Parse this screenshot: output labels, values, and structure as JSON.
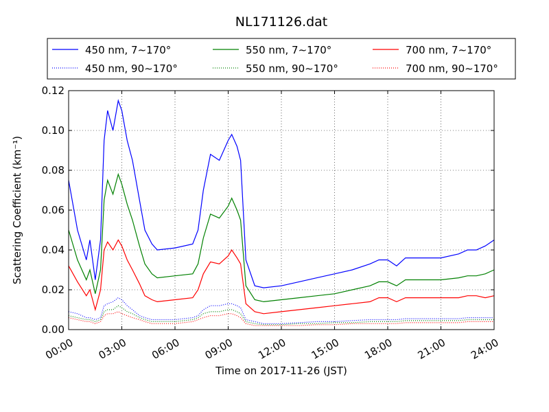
{
  "chart_data": {
    "type": "line",
    "title": "NL171126.dat",
    "xlabel": "Time on 2017-11-26 (JST)",
    "ylabel": "Scattering Coefficient (km⁻¹)",
    "xlim": [
      0,
      24
    ],
    "ylim": [
      0,
      0.12
    ],
    "x_ticks": [
      0,
      3,
      6,
      9,
      12,
      15,
      18,
      21,
      24
    ],
    "x_tick_labels": [
      "00:00",
      "03:00",
      "06:00",
      "09:00",
      "12:00",
      "15:00",
      "18:00",
      "21:00",
      "24:00"
    ],
    "y_ticks": [
      0,
      0.02,
      0.04,
      0.06,
      0.08,
      0.1,
      0.12
    ],
    "y_tick_labels": [
      "0.00",
      "0.02",
      "0.04",
      "0.06",
      "0.08",
      "0.10",
      "0.12"
    ],
    "grid": true,
    "legend_position": "top",
    "x": [
      0,
      0.5,
      1,
      1.2,
      1.5,
      1.8,
      2,
      2.2,
      2.5,
      2.8,
      3,
      3.3,
      3.6,
      4,
      4.3,
      4.7,
      5,
      6,
      7,
      7.3,
      7.6,
      8,
      8.5,
      9,
      9.2,
      9.5,
      9.7,
      10,
      10.5,
      11,
      12,
      13,
      14,
      15,
      16,
      17,
      17.5,
      18,
      18.5,
      19,
      20,
      21,
      22,
      22.5,
      23,
      23.5,
      24
    ],
    "series": [
      {
        "name": "450 nm, 7∼170°",
        "color": "#0000ff",
        "style": "solid",
        "values": [
          0.075,
          0.05,
          0.035,
          0.045,
          0.025,
          0.045,
          0.095,
          0.11,
          0.1,
          0.115,
          0.11,
          0.095,
          0.085,
          0.065,
          0.05,
          0.043,
          0.04,
          0.041,
          0.043,
          0.05,
          0.07,
          0.088,
          0.085,
          0.095,
          0.098,
          0.092,
          0.085,
          0.035,
          0.022,
          0.021,
          0.022,
          0.024,
          0.026,
          0.028,
          0.03,
          0.033,
          0.035,
          0.035,
          0.032,
          0.036,
          0.036,
          0.036,
          0.038,
          0.04,
          0.04,
          0.042,
          0.045
        ]
      },
      {
        "name": "450 nm, 90∼170°",
        "color": "#0000ff",
        "style": "dotted",
        "values": [
          0.009,
          0.008,
          0.006,
          0.006,
          0.005,
          0.006,
          0.012,
          0.013,
          0.014,
          0.016,
          0.015,
          0.012,
          0.01,
          0.007,
          0.006,
          0.005,
          0.005,
          0.005,
          0.006,
          0.007,
          0.01,
          0.012,
          0.012,
          0.013,
          0.013,
          0.012,
          0.011,
          0.005,
          0.004,
          0.003,
          0.003,
          0.0035,
          0.004,
          0.004,
          0.0045,
          0.005,
          0.005,
          0.005,
          0.005,
          0.0055,
          0.0055,
          0.0055,
          0.0055,
          0.006,
          0.006,
          0.006,
          0.006
        ]
      },
      {
        "name": "550 nm, 7∼170°",
        "color": "#008000",
        "style": "solid",
        "values": [
          0.05,
          0.035,
          0.025,
          0.03,
          0.018,
          0.03,
          0.065,
          0.075,
          0.068,
          0.078,
          0.073,
          0.063,
          0.055,
          0.042,
          0.033,
          0.028,
          0.026,
          0.027,
          0.028,
          0.033,
          0.046,
          0.058,
          0.056,
          0.062,
          0.066,
          0.06,
          0.055,
          0.022,
          0.015,
          0.014,
          0.015,
          0.016,
          0.017,
          0.018,
          0.02,
          0.022,
          0.024,
          0.024,
          0.022,
          0.025,
          0.025,
          0.025,
          0.026,
          0.027,
          0.027,
          0.028,
          0.03
        ]
      },
      {
        "name": "550 nm, 90∼170°",
        "color": "#008000",
        "style": "dotted",
        "values": [
          0.007,
          0.006,
          0.005,
          0.005,
          0.004,
          0.005,
          0.009,
          0.01,
          0.01,
          0.012,
          0.011,
          0.009,
          0.008,
          0.006,
          0.005,
          0.004,
          0.004,
          0.004,
          0.005,
          0.006,
          0.008,
          0.009,
          0.009,
          0.01,
          0.01,
          0.009,
          0.008,
          0.004,
          0.003,
          0.0025,
          0.0025,
          0.003,
          0.003,
          0.0035,
          0.0035,
          0.004,
          0.004,
          0.004,
          0.004,
          0.0045,
          0.0045,
          0.0045,
          0.0045,
          0.005,
          0.005,
          0.005,
          0.005
        ]
      },
      {
        "name": "700 nm, 7∼170°",
        "color": "#ff0000",
        "style": "solid",
        "values": [
          0.032,
          0.024,
          0.017,
          0.02,
          0.01,
          0.02,
          0.04,
          0.044,
          0.04,
          0.045,
          0.042,
          0.035,
          0.03,
          0.023,
          0.017,
          0.015,
          0.014,
          0.015,
          0.016,
          0.02,
          0.028,
          0.034,
          0.033,
          0.037,
          0.04,
          0.036,
          0.033,
          0.013,
          0.009,
          0.008,
          0.009,
          0.01,
          0.011,
          0.012,
          0.013,
          0.014,
          0.016,
          0.016,
          0.014,
          0.016,
          0.016,
          0.016,
          0.016,
          0.017,
          0.017,
          0.016,
          0.017
        ]
      },
      {
        "name": "700 nm, 90∼170°",
        "color": "#ff0000",
        "style": "dotted",
        "values": [
          0.006,
          0.005,
          0.004,
          0.004,
          0.003,
          0.004,
          0.007,
          0.008,
          0.008,
          0.009,
          0.008,
          0.007,
          0.006,
          0.005,
          0.004,
          0.003,
          0.003,
          0.003,
          0.004,
          0.005,
          0.006,
          0.007,
          0.007,
          0.008,
          0.008,
          0.007,
          0.006,
          0.003,
          0.002,
          0.002,
          0.002,
          0.002,
          0.0025,
          0.0025,
          0.003,
          0.003,
          0.003,
          0.003,
          0.003,
          0.0035,
          0.0035,
          0.0035,
          0.0035,
          0.004,
          0.004,
          0.004,
          0.004
        ]
      }
    ]
  }
}
